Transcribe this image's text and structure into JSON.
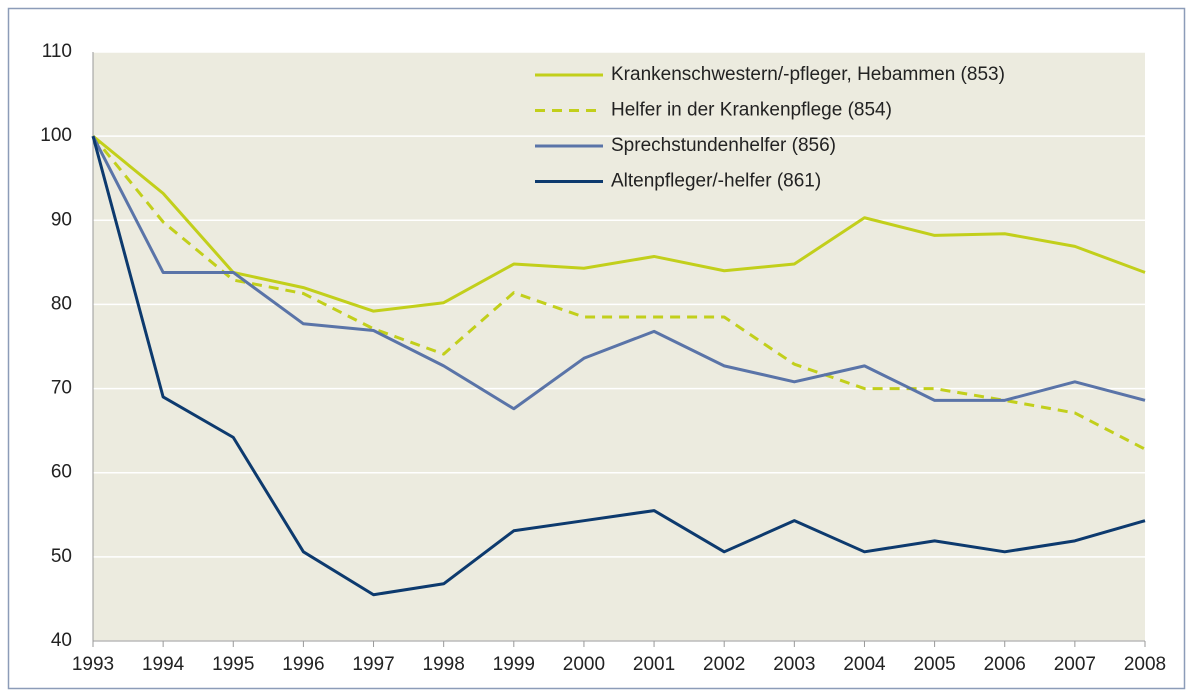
{
  "chart_data": {
    "type": "line",
    "x": [
      1993,
      1994,
      1995,
      1996,
      1997,
      1998,
      1999,
      2000,
      2001,
      2002,
      2003,
      2004,
      2005,
      2006,
      2007,
      2008
    ],
    "xlim": [
      1993,
      2008
    ],
    "xticks": [
      1993,
      1994,
      1995,
      1996,
      1997,
      1998,
      1999,
      2000,
      2001,
      2002,
      2003,
      2004,
      2005,
      2006,
      2007,
      2008
    ],
    "ylim": [
      40,
      110
    ],
    "yticks": [
      40,
      50,
      60,
      70,
      80,
      90,
      100,
      110
    ],
    "grid": true,
    "legend": "upper right",
    "series": [
      {
        "name": "Krankenschwestern/-pfleger, Hebammen (853)",
        "color": "#c2cf1b",
        "dashed": false,
        "values": [
          100,
          93.2,
          83.8,
          82.0,
          79.2,
          80.2,
          84.8,
          84.3,
          85.7,
          84.0,
          84.8,
          90.3,
          88.2,
          88.4,
          86.9,
          83.8
        ]
      },
      {
        "name": "Helfer in der Krankenpflege (854)",
        "color": "#c2cf1b",
        "dashed": true,
        "values": [
          100,
          89.8,
          82.9,
          81.3,
          77.1,
          74.1,
          81.4,
          78.5,
          78.5,
          78.5,
          72.9,
          70.0,
          70.0,
          68.6,
          67.1,
          62.8
        ]
      },
      {
        "name": "Sprechstundenhelfer (856)",
        "color": "#5a74a8",
        "dashed": false,
        "values": [
          100,
          83.8,
          83.8,
          77.7,
          76.9,
          72.7,
          67.6,
          73.6,
          76.8,
          72.7,
          70.8,
          72.7,
          68.6,
          68.6,
          70.8,
          68.6
        ]
      },
      {
        "name": "Altenpfleger/-helfer (861)",
        "color": "#0d3a6e",
        "dashed": false,
        "values": [
          100,
          69.0,
          64.2,
          50.6,
          45.5,
          46.8,
          53.1,
          54.3,
          55.5,
          50.6,
          54.3,
          50.6,
          51.9,
          50.6,
          51.9,
          54.3
        ]
      }
    ]
  }
}
